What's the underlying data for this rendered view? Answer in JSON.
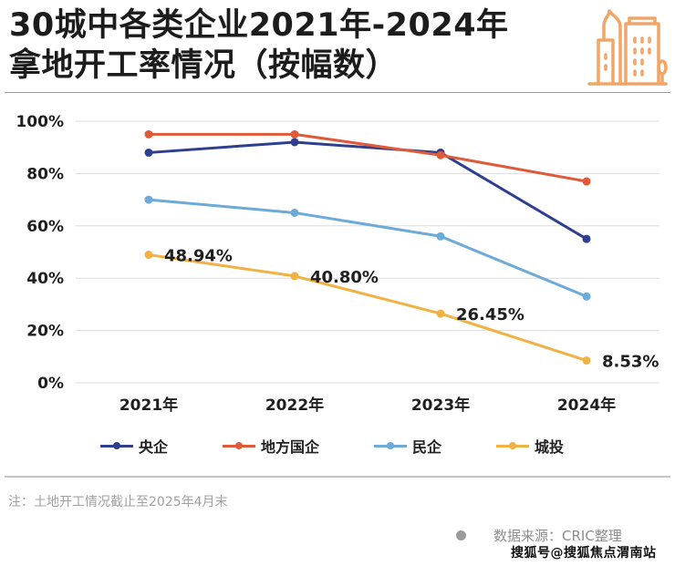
{
  "header": {
    "title_line1": "30城中各类企业2021年-2024年",
    "title_line2": "拿地开工率情况（按幅数）",
    "logo_icon": "city-buildings-icon",
    "logo_color": "#F0A668"
  },
  "chart_data": {
    "type": "line",
    "title": "30城中各类企业2021年-2024年拿地开工率情况（按幅数）",
    "xlabel": "",
    "ylabel": "",
    "categories": [
      "2021年",
      "2022年",
      "2023年",
      "2024年"
    ],
    "y_ticks": [
      "0%",
      "20%",
      "40%",
      "60%",
      "80%",
      "100%"
    ],
    "ylim": [
      0,
      100
    ],
    "grid": true,
    "legend_position": "bottom",
    "series": [
      {
        "name": "央企",
        "color": "#2F3F8F",
        "values": [
          88,
          92,
          88,
          55
        ],
        "labels": []
      },
      {
        "name": "地方国企",
        "color": "#E05A3A",
        "values": [
          95,
          95,
          87,
          77
        ],
        "labels": []
      },
      {
        "name": "民企",
        "color": "#6CAAD9",
        "values": [
          70,
          65,
          56,
          33
        ],
        "labels": []
      },
      {
        "name": "城投",
        "color": "#F1B143",
        "values": [
          48.94,
          40.8,
          26.45,
          8.53
        ],
        "labels": [
          "48.94%",
          "40.80%",
          "26.45%",
          "8.53%"
        ]
      }
    ]
  },
  "legend": {
    "items": [
      {
        "label": "央企",
        "color": "#2F3F8F"
      },
      {
        "label": "地方国企",
        "color": "#E05A3A"
      },
      {
        "label": "民企",
        "color": "#6CAAD9"
      },
      {
        "label": "城投",
        "color": "#F1B143"
      }
    ]
  },
  "footer": {
    "note": "注：土地开工情况截止至2025年4月末",
    "source": "数据来源：CRIC整理",
    "watermark": "搜狐号@搜狐焦点渭南站"
  }
}
